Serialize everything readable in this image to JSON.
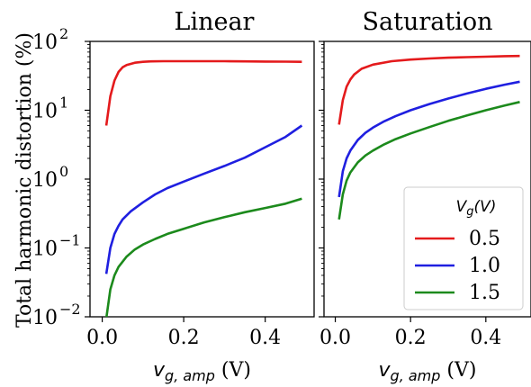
{
  "chart_data": [
    {
      "type": "line",
      "title": "Linear",
      "xlabel": {
        "var": "v",
        "sub": "g, amp",
        "unit": "(V)"
      },
      "ylabel": "Total harmonic distortion (%)",
      "yscale": "log",
      "xlim": [
        -0.03,
        0.52
      ],
      "ylim": [
        0.01,
        100
      ],
      "xticks": [
        "0.0",
        "0.2",
        "0.4"
      ],
      "xtick_values": [
        0.0,
        0.2,
        0.4
      ],
      "yticks": [
        {
          "base": "10",
          "exp": "−2",
          "value": 0.01
        },
        {
          "base": "10",
          "exp": "−1",
          "value": 0.1
        },
        {
          "base": "10",
          "exp": "0",
          "value": 1
        },
        {
          "base": "10",
          "exp": "1",
          "value": 10
        },
        {
          "base": "10",
          "exp": "2",
          "value": 100
        }
      ],
      "grid": false,
      "series": [
        {
          "name": "0.5",
          "color": "#e41a1c",
          "x": [
            0.01,
            0.02,
            0.03,
            0.04,
            0.05,
            0.06,
            0.08,
            0.1,
            0.12,
            0.15,
            0.2,
            0.25,
            0.3,
            0.35,
            0.4,
            0.45,
            0.49
          ],
          "y": [
            6,
            16,
            27,
            36,
            42,
            45.5,
            49,
            50.5,
            51.2,
            51.5,
            51.6,
            51.6,
            51.5,
            51.3,
            51.0,
            50.8,
            50.5
          ]
        },
        {
          "name": "1.0",
          "color": "#1f1fe0",
          "x": [
            0.01,
            0.02,
            0.03,
            0.04,
            0.05,
            0.07,
            0.1,
            0.13,
            0.16,
            0.2,
            0.25,
            0.3,
            0.35,
            0.4,
            0.45,
            0.49
          ],
          "y": [
            0.042,
            0.1,
            0.16,
            0.21,
            0.26,
            0.34,
            0.46,
            0.6,
            0.74,
            0.92,
            1.2,
            1.55,
            2.05,
            2.9,
            4.1,
            6.0
          ]
        },
        {
          "name": "1.5",
          "color": "#1c8a1c",
          "x": [
            0.01,
            0.02,
            0.03,
            0.04,
            0.06,
            0.08,
            0.1,
            0.13,
            0.16,
            0.2,
            0.25,
            0.3,
            0.35,
            0.4,
            0.45,
            0.49
          ],
          "y": [
            0.0095,
            0.025,
            0.04,
            0.053,
            0.075,
            0.095,
            0.112,
            0.135,
            0.16,
            0.19,
            0.235,
            0.28,
            0.33,
            0.38,
            0.44,
            0.52
          ]
        }
      ]
    },
    {
      "type": "line",
      "title": "Saturation",
      "xlabel": {
        "var": "v",
        "sub": "g, amp",
        "unit": "(V)"
      },
      "yscale": "log",
      "xlim": [
        -0.03,
        0.52
      ],
      "ylim": [
        0.01,
        100
      ],
      "xticks": [
        "0.0",
        "0.2",
        "0.4"
      ],
      "xtick_values": [
        0.0,
        0.2,
        0.4
      ],
      "grid": false,
      "legend": {
        "title": {
          "var": "V",
          "sub": "g",
          "unit": "(V)"
        },
        "location": "lower-right",
        "entries": [
          "0.5",
          "1.0",
          "1.5"
        ]
      },
      "series": [
        {
          "name": "0.5",
          "color": "#e41a1c",
          "x": [
            0.01,
            0.02,
            0.03,
            0.04,
            0.05,
            0.07,
            0.1,
            0.15,
            0.2,
            0.25,
            0.3,
            0.35,
            0.4,
            0.45,
            0.49
          ],
          "y": [
            6.2,
            14,
            22,
            28,
            33,
            40,
            46,
            51.5,
            54.5,
            56.5,
            58,
            59,
            60,
            61,
            61.5
          ]
        },
        {
          "name": "1.0",
          "color": "#1f1fe0",
          "x": [
            0.01,
            0.02,
            0.03,
            0.04,
            0.06,
            0.08,
            0.1,
            0.13,
            0.16,
            0.2,
            0.25,
            0.3,
            0.35,
            0.4,
            0.45,
            0.49
          ],
          "y": [
            0.55,
            1.3,
            2.0,
            2.6,
            3.7,
            4.7,
            5.6,
            6.9,
            8.2,
            10,
            12.3,
            14.8,
            17.5,
            20.5,
            23.5,
            26
          ]
        },
        {
          "name": "1.5",
          "color": "#1c8a1c",
          "x": [
            0.01,
            0.02,
            0.03,
            0.04,
            0.06,
            0.08,
            0.1,
            0.13,
            0.16,
            0.2,
            0.25,
            0.3,
            0.35,
            0.4,
            0.45,
            0.49
          ],
          "y": [
            0.26,
            0.6,
            0.95,
            1.25,
            1.75,
            2.2,
            2.6,
            3.2,
            3.8,
            4.6,
            5.7,
            7.0,
            8.4,
            10,
            11.7,
            13.2
          ]
        }
      ]
    }
  ]
}
